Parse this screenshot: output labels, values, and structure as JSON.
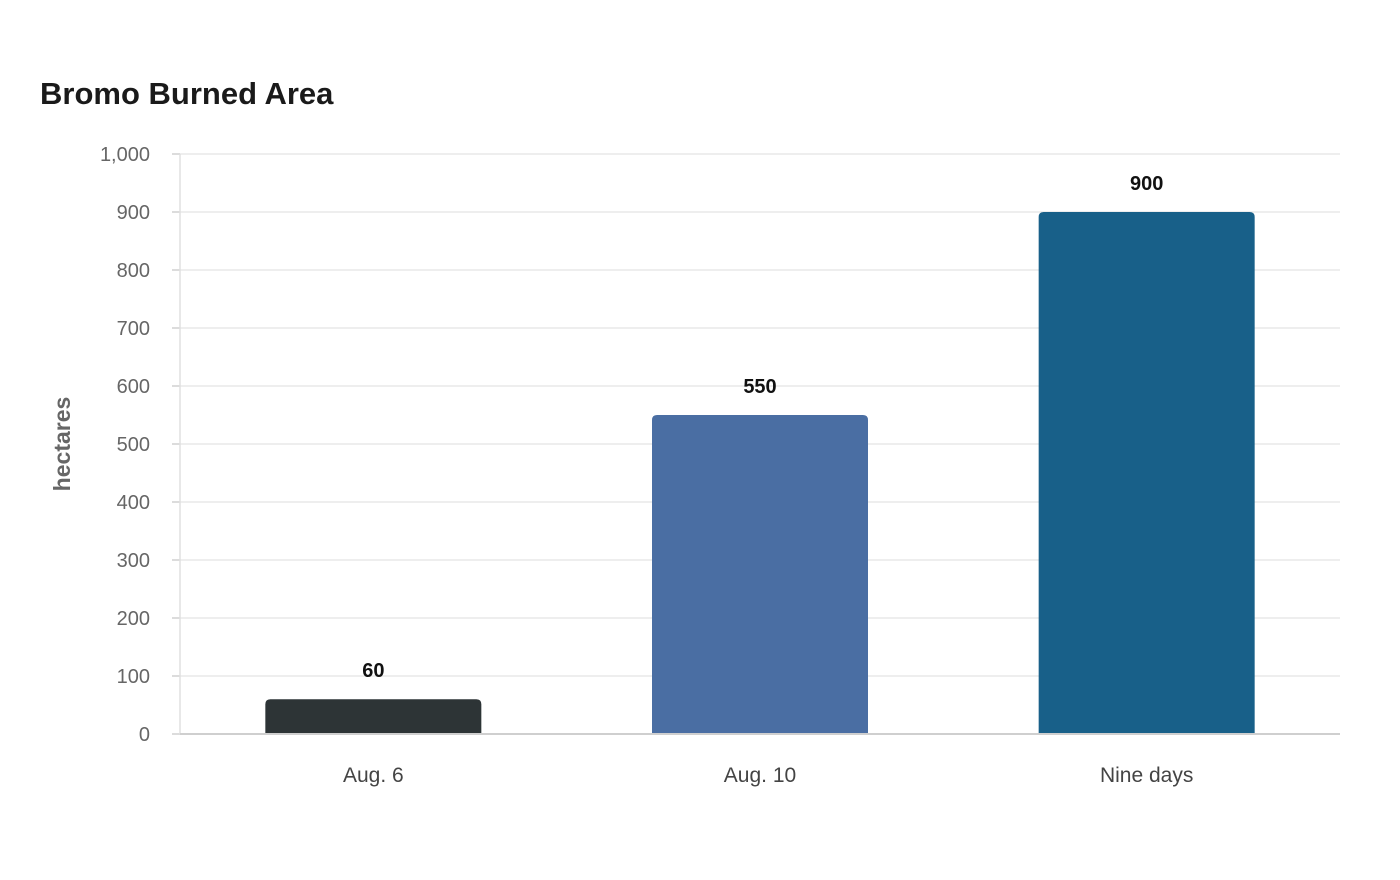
{
  "chart_data": {
    "type": "bar",
    "title": "Bromo Burned Area",
    "xlabel": "",
    "ylabel": "hectares",
    "categories": [
      "Aug. 6",
      "Aug. 10",
      "Nine days"
    ],
    "values": [
      60,
      550,
      900
    ],
    "data_labels": [
      "60",
      "550",
      "900"
    ],
    "ylim": [
      0,
      1000
    ],
    "yticks": [
      0,
      100,
      200,
      300,
      400,
      500,
      600,
      700,
      800,
      900,
      1000
    ],
    "ytick_labels": [
      "0",
      "100",
      "200",
      "300",
      "400",
      "500",
      "600",
      "700",
      "800",
      "900",
      "1,000"
    ],
    "colors": [
      "#2d3436",
      "#4a6ea3",
      "#186089"
    ],
    "grid": true,
    "legend": "none"
  }
}
